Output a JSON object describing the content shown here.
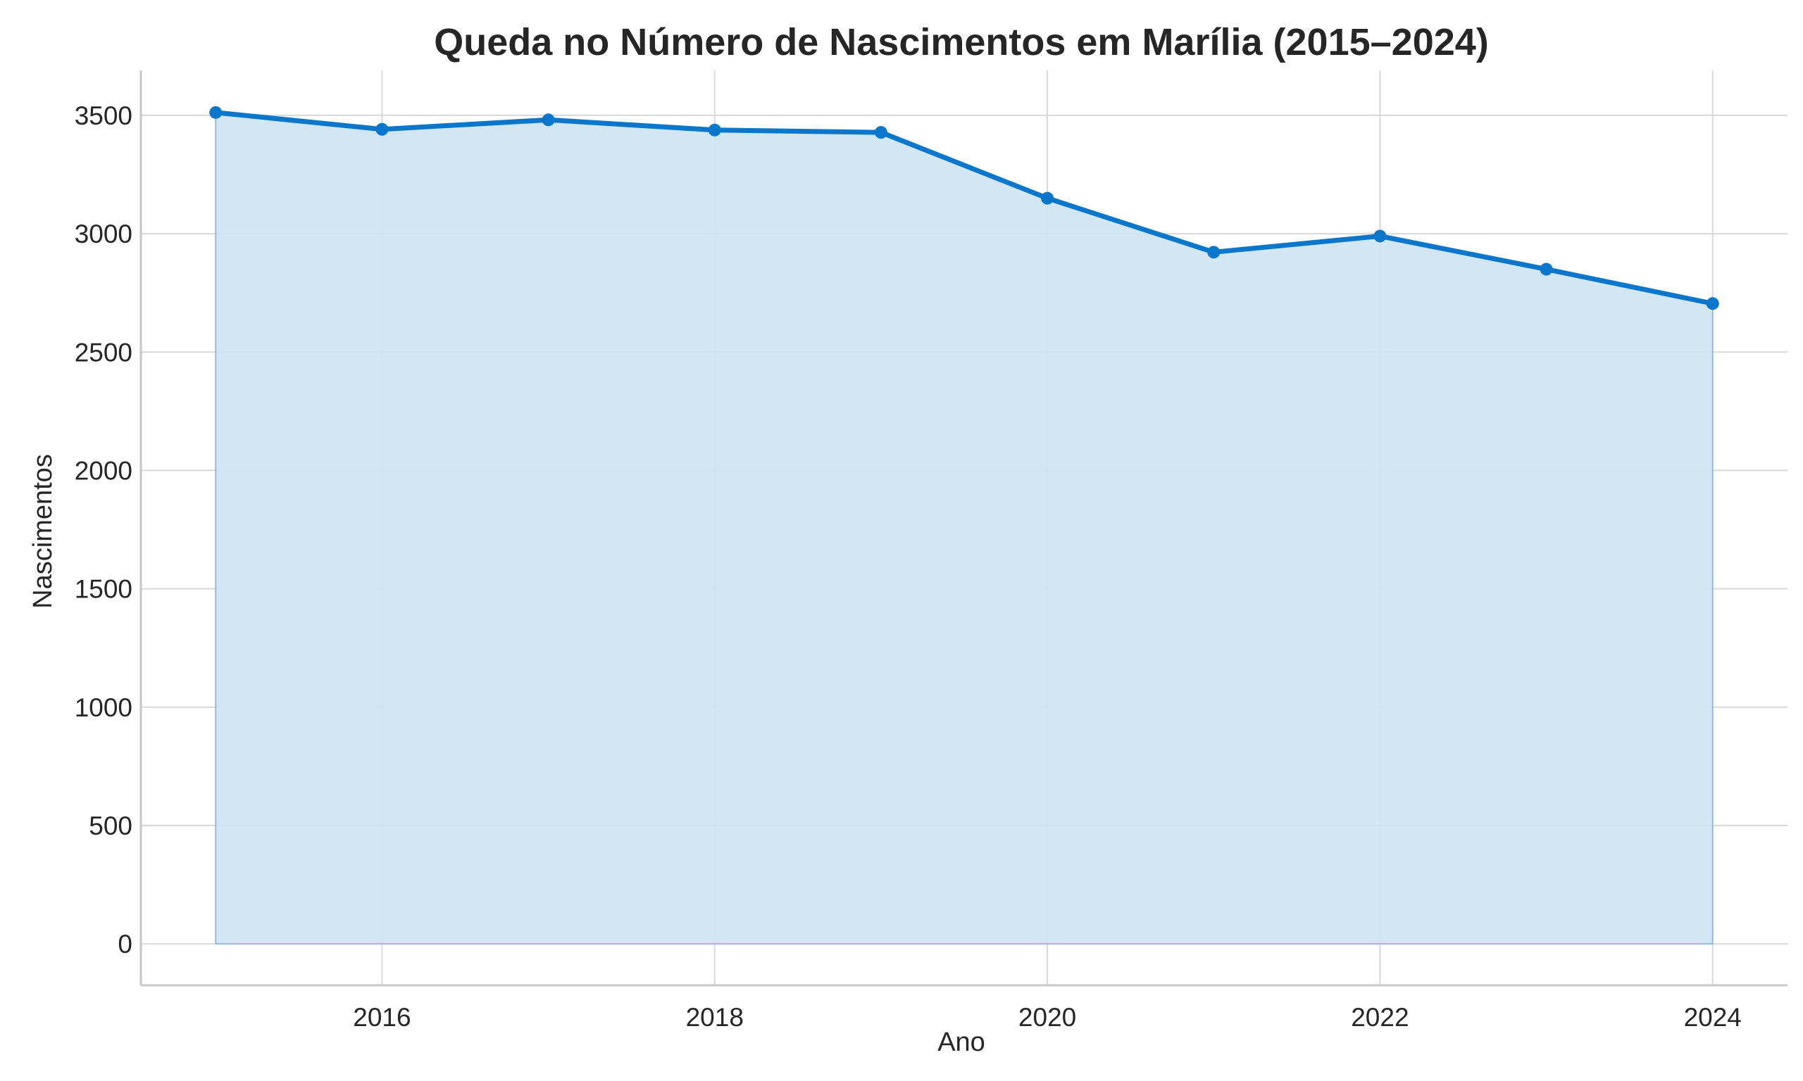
{
  "chart_data": {
    "type": "area",
    "title": "Queda no Número de Nascimentos em Marília (2015–2024)",
    "xlabel": "Ano",
    "ylabel": "Nascimentos",
    "x": [
      2015,
      2016,
      2017,
      2018,
      2019,
      2020,
      2021,
      2022,
      2023,
      2024
    ],
    "series": [
      {
        "name": "Nascimentos",
        "values": [
          3512,
          3441,
          3481,
          3438,
          3428,
          3150,
          2922,
          2990,
          2850,
          2705
        ]
      }
    ],
    "xlim": [
      2014.55,
      2024.45
    ],
    "ylim": [
      -175,
      3690
    ],
    "xticks": [
      2016,
      2018,
      2020,
      2022,
      2024
    ],
    "xtick_labels": [
      "2016",
      "2018",
      "2020",
      "2022",
      "2024"
    ],
    "yticks": [
      0,
      500,
      1000,
      1500,
      2000,
      2500,
      3000,
      3500
    ],
    "ytick_labels": [
      "0",
      "500",
      "1000",
      "1500",
      "2000",
      "2500",
      "3000",
      "3500"
    ],
    "grid": true,
    "line_color": "#0a77cc",
    "fill_color": "#cde3f3",
    "fill_edge_color": "#8fbedf"
  }
}
